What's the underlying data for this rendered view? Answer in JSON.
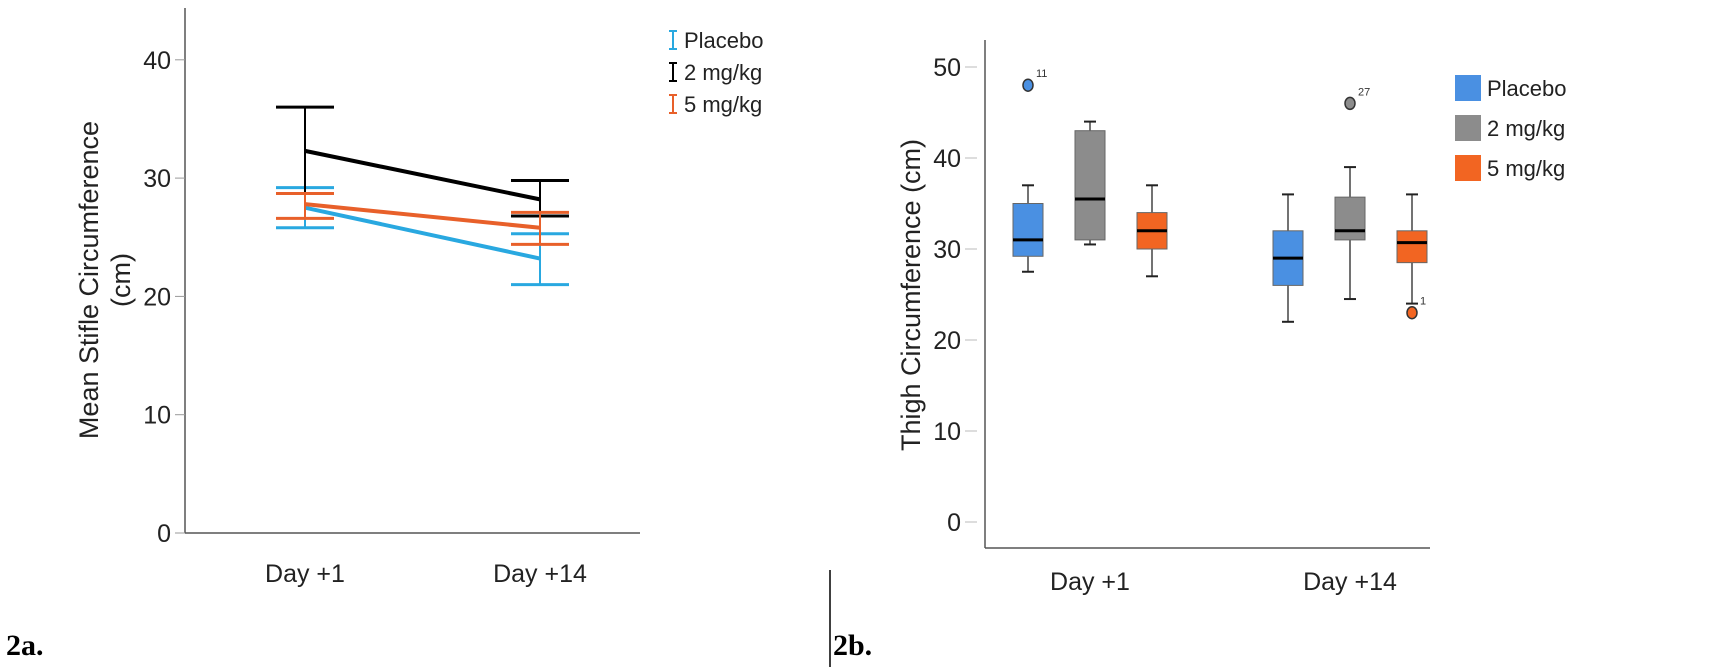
{
  "chart_data": [
    {
      "type": "line",
      "panel_label": "2a.",
      "ylabel_lines": [
        "Mean Stifle Circumference",
        "(cm)"
      ],
      "xlabel": "",
      "categories": [
        "Day +1",
        "Day +14"
      ],
      "ylim": [
        0,
        44
      ],
      "yticks": [
        0,
        10,
        20,
        30,
        40
      ],
      "legend": "top-right",
      "series": [
        {
          "name": "Placebo",
          "color": "#29a8e0",
          "values": [
            27.5,
            23.2
          ],
          "err_low": [
            25.8,
            21.0
          ],
          "err_high": [
            29.2,
            25.3
          ]
        },
        {
          "name": "2 mg/kg",
          "color": "#000000",
          "values": [
            32.3,
            28.2
          ],
          "err_low": [
            28.7,
            26.8
          ],
          "err_high": [
            36.0,
            29.8
          ]
        },
        {
          "name": "5 mg/kg",
          "color": "#e8602a",
          "values": [
            27.8,
            25.8
          ],
          "err_low": [
            26.6,
            24.4
          ],
          "err_high": [
            28.7,
            27.1
          ]
        }
      ]
    },
    {
      "type": "box",
      "panel_label": "2b.",
      "ylabel": "Thigh Circumference (cm)",
      "xlabel": "",
      "categories": [
        "Day +1",
        "Day +14"
      ],
      "ylim": [
        -3,
        53
      ],
      "yticks": [
        0,
        10,
        20,
        30,
        40,
        50
      ],
      "legend": "top-right",
      "series": [
        {
          "name": "Placebo",
          "color": "#4a90e2",
          "boxes": [
            {
              "min": 27.5,
              "q1": 29.2,
              "median": 31,
              "q3": 35,
              "max": 37,
              "outliers": [
                {
                  "value": 48,
                  "label": "11"
                }
              ]
            },
            {
              "min": 22,
              "q1": 26,
              "median": 29,
              "q3": 32,
              "max": 36,
              "outliers": []
            }
          ]
        },
        {
          "name": "2 mg/kg",
          "color": "#8c8c8c",
          "boxes": [
            {
              "min": 30.5,
              "q1": 31,
              "median": 35.5,
              "q3": 43,
              "max": 44,
              "outliers": []
            },
            {
              "min": 24.5,
              "q1": 31,
              "median": 32,
              "q3": 35.7,
              "max": 39,
              "outliers": [
                {
                  "value": 46,
                  "label": "27"
                }
              ]
            }
          ]
        },
        {
          "name": "5 mg/kg",
          "color": "#f26522",
          "boxes": [
            {
              "min": 27,
              "q1": 30,
              "median": 32,
              "q3": 34,
              "max": 37,
              "outliers": []
            },
            {
              "min": 24,
              "q1": 28.5,
              "median": 30.7,
              "q3": 32,
              "max": 36,
              "outliers": [
                {
                  "value": 23,
                  "label": "1"
                }
              ]
            }
          ]
        }
      ]
    }
  ]
}
